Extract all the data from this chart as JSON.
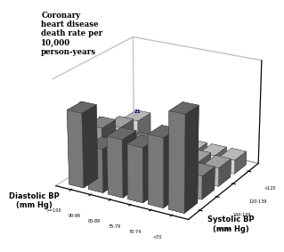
{
  "title": "Coronary\nheart disease\ndeath rate per\n10,000\nperson-years",
  "diastolic_labels": [
    ">=100",
    "90-99",
    "80-89",
    "75-79",
    "70-74",
    "<70"
  ],
  "systolic_labels": [
    "<120",
    "120-139",
    "140-159",
    ">=160"
  ],
  "values": [
    [
      21,
      10,
      12,
      9,
      9,
      9
    ],
    [
      24,
      12,
      14,
      13,
      13,
      12
    ],
    [
      31,
      17,
      26,
      25,
      25,
      15
    ],
    [
      48,
      28,
      37,
      35,
      44,
      61
    ]
  ],
  "bar_colors_by_systolic": [
    "#f0f0f0",
    "#d0d0d0",
    "#aaaaaa",
    "#888888"
  ],
  "bar_edge_color": "#333333",
  "label_color": "#00008B",
  "background_color": "#ffffff",
  "xlabel_diastolic": "Diastolic BP\n(mm Hg)",
  "xlabel_systolic": "Systolic BP\n(mm Hg)",
  "elev": 22,
  "azim": -60
}
